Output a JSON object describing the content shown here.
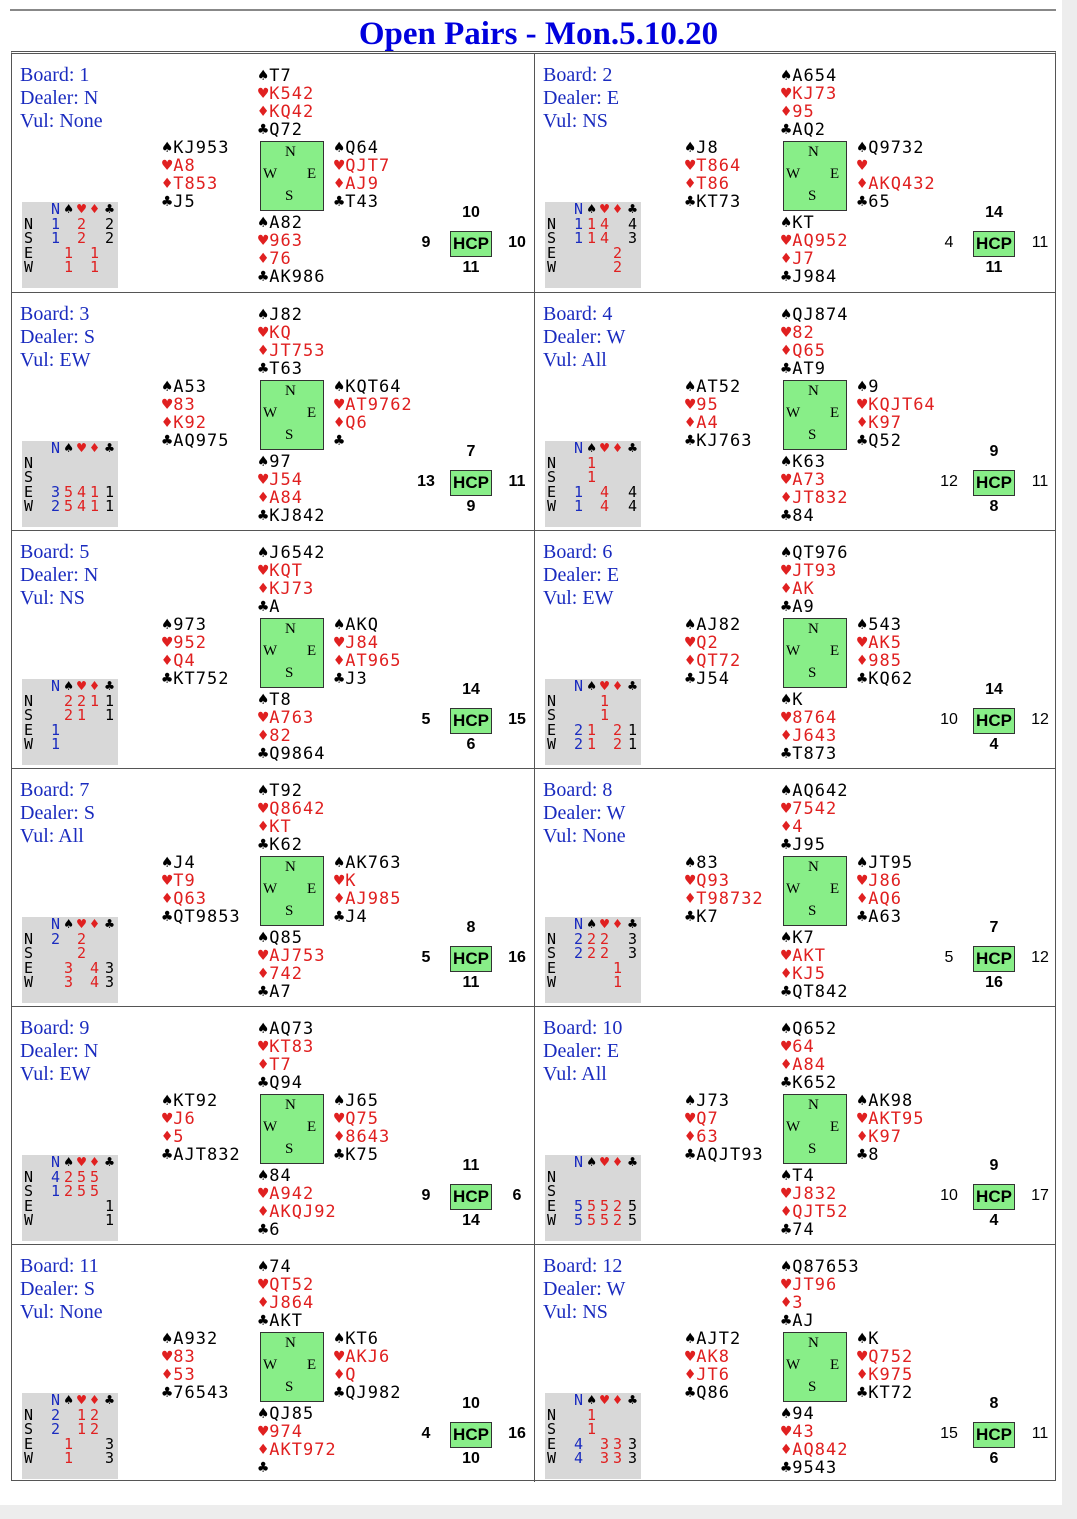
{
  "title": "Open Pairs - Mon.5.10.20",
  "labels": {
    "hcp": "HCP",
    "board": "Board:",
    "dealer": "Dealer:",
    "vul": "Vul:",
    "compass": [
      "N",
      "W",
      "E",
      "S"
    ],
    "trick_header": [
      "N",
      "♠",
      "♥",
      "♦",
      "♣"
    ]
  },
  "colors": {
    "title": "#0000dd",
    "info_text": "#1a2bbf",
    "red_suit": "#e02020",
    "compass_bg": "#88ee88",
    "tricks_bg": "#d8d8d8"
  },
  "boards": [
    {
      "board": "1",
      "dealer": "N",
      "vul": "None",
      "north": [
        "T7",
        "K542",
        "KQ42",
        "Q72"
      ],
      "west": [
        "KJ953",
        "A8",
        "T853",
        "J5"
      ],
      "east": [
        "Q64",
        "QJT7",
        "AJ9",
        "T43"
      ],
      "south": [
        "A82",
        "963",
        "76",
        "AK986"
      ],
      "hcp": {
        "n": "10",
        "w": "9",
        "e": "10",
        "s": "11"
      },
      "tricks": [
        [
          "1",
          "",
          "2",
          "",
          "2"
        ],
        [
          "1",
          "",
          "2",
          "",
          "2"
        ],
        [
          "",
          "1",
          "",
          "1",
          ""
        ],
        [
          "",
          "1",
          "",
          "1",
          ""
        ]
      ]
    },
    {
      "board": "2",
      "dealer": "E",
      "vul": "NS",
      "north": [
        "A654",
        "KJ73",
        "95",
        "AQ2"
      ],
      "west": [
        "J8",
        "T864",
        "T86",
        "KT73"
      ],
      "east": [
        "Q9732",
        "",
        "AKQ432",
        "65"
      ],
      "south": [
        "KT",
        "AQ952",
        "J7",
        "J984"
      ],
      "hcp": {
        "n": "14",
        "w": "4",
        "e": "11",
        "s": "11"
      },
      "tricks": [
        [
          "1",
          "1",
          "4",
          "",
          "4"
        ],
        [
          "1",
          "1",
          "4",
          "",
          "3"
        ],
        [
          "",
          "",
          "",
          "2",
          ""
        ],
        [
          "",
          "",
          "",
          "2",
          ""
        ]
      ]
    },
    {
      "board": "3",
      "dealer": "S",
      "vul": "EW",
      "north": [
        "J82",
        "KQ",
        "JT753",
        "T63"
      ],
      "west": [
        "A53",
        "83",
        "K92",
        "AQ975"
      ],
      "east": [
        "KQT64",
        "AT9762",
        "Q6",
        ""
      ],
      "south": [
        "97",
        "J54",
        "A84",
        "KJ842"
      ],
      "hcp": {
        "n": "7",
        "w": "13",
        "e": "11",
        "s": "9"
      },
      "tricks": [
        [
          "",
          "",
          "",
          "",
          ""
        ],
        [
          "",
          "",
          "",
          "",
          ""
        ],
        [
          "3",
          "5",
          "4",
          "1",
          "1"
        ],
        [
          "2",
          "5",
          "4",
          "1",
          "1"
        ]
      ]
    },
    {
      "board": "4",
      "dealer": "W",
      "vul": "All",
      "north": [
        "QJ874",
        "82",
        "Q65",
        "AT9"
      ],
      "west": [
        "AT52",
        "95",
        "A4",
        "KJ763"
      ],
      "east": [
        "9",
        "KQJT64",
        "K97",
        "Q52"
      ],
      "south": [
        "K63",
        "A73",
        "JT832",
        "84"
      ],
      "hcp": {
        "n": "9",
        "w": "12",
        "e": "11",
        "s": "8"
      },
      "tricks": [
        [
          "",
          "1",
          "",
          "",
          ""
        ],
        [
          "",
          "1",
          "",
          "",
          ""
        ],
        [
          "1",
          "",
          "4",
          "",
          "4"
        ],
        [
          "1",
          "",
          "4",
          "",
          "4"
        ]
      ]
    },
    {
      "board": "5",
      "dealer": "N",
      "vul": "NS",
      "north": [
        "J6542",
        "KQT",
        "KJ73",
        "A"
      ],
      "west": [
        "973",
        "952",
        "Q4",
        "KT752"
      ],
      "east": [
        "AKQ",
        "J84",
        "AT965",
        "J3"
      ],
      "south": [
        "T8",
        "A763",
        "82",
        "Q9864"
      ],
      "hcp": {
        "n": "14",
        "w": "5",
        "e": "15",
        "s": "6"
      },
      "tricks": [
        [
          "",
          "2",
          "2",
          "1",
          "1"
        ],
        [
          "",
          "2",
          "1",
          "",
          "1"
        ],
        [
          "1",
          "",
          "",
          "",
          ""
        ],
        [
          "1",
          "",
          "",
          "",
          ""
        ]
      ]
    },
    {
      "board": "6",
      "dealer": "E",
      "vul": "EW",
      "north": [
        "QT976",
        "JT93",
        "AK",
        "A9"
      ],
      "west": [
        "AJ82",
        "Q2",
        "QT72",
        "J54"
      ],
      "east": [
        "543",
        "AK5",
        "985",
        "KQ62"
      ],
      "south": [
        "K",
        "8764",
        "J643",
        "T873"
      ],
      "hcp": {
        "n": "14",
        "w": "10",
        "e": "12",
        "s": "4"
      },
      "tricks": [
        [
          "",
          "",
          "1",
          "",
          ""
        ],
        [
          "",
          "",
          "1",
          "",
          ""
        ],
        [
          "2",
          "1",
          "",
          "2",
          "1"
        ],
        [
          "2",
          "1",
          "",
          "2",
          "1"
        ]
      ]
    },
    {
      "board": "7",
      "dealer": "S",
      "vul": "All",
      "north": [
        "T92",
        "Q8642",
        "KT",
        "K62"
      ],
      "west": [
        "J4",
        "T9",
        "Q63",
        "QT9853"
      ],
      "east": [
        "AK763",
        "K",
        "AJ985",
        "J4"
      ],
      "south": [
        "Q85",
        "AJ753",
        "742",
        "A7"
      ],
      "hcp": {
        "n": "8",
        "w": "5",
        "e": "16",
        "s": "11"
      },
      "tricks": [
        [
          "2",
          "",
          "2",
          "",
          ""
        ],
        [
          "",
          "",
          "2",
          "",
          ""
        ],
        [
          "",
          "3",
          "",
          "4",
          "3"
        ],
        [
          "",
          "3",
          "",
          "4",
          "3"
        ]
      ]
    },
    {
      "board": "8",
      "dealer": "W",
      "vul": "None",
      "north": [
        "AQ642",
        "7542",
        "4",
        "J95"
      ],
      "west": [
        "83",
        "Q93",
        "T98732",
        "K7"
      ],
      "east": [
        "JT95",
        "J86",
        "AQ6",
        "A63"
      ],
      "south": [
        "K7",
        "AKT",
        "KJ5",
        "QT842"
      ],
      "hcp": {
        "n": "7",
        "w": "5",
        "e": "12",
        "s": "16"
      },
      "tricks": [
        [
          "2",
          "2",
          "2",
          "",
          "3"
        ],
        [
          "2",
          "2",
          "2",
          "",
          "3"
        ],
        [
          "",
          "",
          "",
          "1",
          ""
        ],
        [
          "",
          "",
          "",
          "1",
          ""
        ]
      ]
    },
    {
      "board": "9",
      "dealer": "N",
      "vul": "EW",
      "north": [
        "AQ73",
        "KT83",
        "T7",
        "Q94"
      ],
      "west": [
        "KT92",
        "J6",
        "5",
        "AJT832"
      ],
      "east": [
        "J65",
        "Q75",
        "8643",
        "K75"
      ],
      "south": [
        "84",
        "A942",
        "AKQJ92",
        "6"
      ],
      "hcp": {
        "n": "11",
        "w": "9",
        "e": "6",
        "s": "14"
      },
      "tricks": [
        [
          "4",
          "2",
          "5",
          "5",
          ""
        ],
        [
          "1",
          "2",
          "5",
          "5",
          ""
        ],
        [
          "",
          "",
          "",
          "",
          "1"
        ],
        [
          "",
          "",
          "",
          "",
          "1"
        ]
      ]
    },
    {
      "board": "10",
      "dealer": "E",
      "vul": "All",
      "north": [
        "Q652",
        "64",
        "A84",
        "K652"
      ],
      "west": [
        "J73",
        "Q7",
        "63",
        "AQJT93"
      ],
      "east": [
        "AK98",
        "AKT95",
        "K97",
        "8"
      ],
      "south": [
        "T4",
        "J832",
        "QJT52",
        "74"
      ],
      "hcp": {
        "n": "9",
        "w": "10",
        "e": "17",
        "s": "4"
      },
      "tricks": [
        [
          "",
          "",
          "",
          "",
          ""
        ],
        [
          "",
          "",
          "",
          "",
          ""
        ],
        [
          "5",
          "5",
          "5",
          "2",
          "5"
        ],
        [
          "5",
          "5",
          "5",
          "2",
          "5"
        ]
      ]
    },
    {
      "board": "11",
      "dealer": "S",
      "vul": "None",
      "north": [
        "74",
        "QT52",
        "J864",
        "AKT"
      ],
      "west": [
        "A932",
        "83",
        "53",
        "76543"
      ],
      "east": [
        "KT6",
        "AKJ6",
        "Q",
        "QJ982"
      ],
      "south": [
        "QJ85",
        "974",
        "AKT972",
        ""
      ],
      "hcp": {
        "n": "10",
        "w": "4",
        "e": "16",
        "s": "10"
      },
      "tricks": [
        [
          "2",
          "",
          "1",
          "2",
          ""
        ],
        [
          "2",
          "",
          "1",
          "2",
          ""
        ],
        [
          "",
          "1",
          "",
          "",
          "3"
        ],
        [
          "",
          "1",
          "",
          "",
          "3"
        ]
      ]
    },
    {
      "board": "12",
      "dealer": "W",
      "vul": "NS",
      "north": [
        "Q87653",
        "JT96",
        "3",
        "AJ"
      ],
      "west": [
        "AJT2",
        "AK8",
        "JT6",
        "Q86"
      ],
      "east": [
        "K",
        "Q752",
        "K975",
        "KT72"
      ],
      "south": [
        "94",
        "43",
        "AQ842",
        "9543"
      ],
      "hcp": {
        "n": "8",
        "w": "15",
        "e": "11",
        "s": "6"
      },
      "tricks": [
        [
          "",
          "1",
          "",
          "",
          ""
        ],
        [
          "",
          "1",
          "",
          "",
          ""
        ],
        [
          "4",
          "",
          "3",
          "3",
          "3"
        ],
        [
          "4",
          "",
          "3",
          "3",
          "3"
        ]
      ]
    }
  ]
}
